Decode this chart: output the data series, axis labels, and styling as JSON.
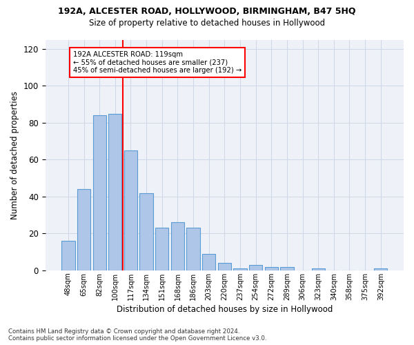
{
  "title1": "192A, ALCESTER ROAD, HOLLYWOOD, BIRMINGHAM, B47 5HQ",
  "title2": "Size of property relative to detached houses in Hollywood",
  "xlabel": "Distribution of detached houses by size in Hollywood",
  "ylabel": "Number of detached properties",
  "footnote": "Contains HM Land Registry data © Crown copyright and database right 2024.\nContains public sector information licensed under the Open Government Licence v3.0.",
  "bar_labels": [
    "48sqm",
    "65sqm",
    "82sqm",
    "100sqm",
    "117sqm",
    "134sqm",
    "151sqm",
    "168sqm",
    "186sqm",
    "203sqm",
    "220sqm",
    "237sqm",
    "254sqm",
    "272sqm",
    "289sqm",
    "306sqm",
    "323sqm",
    "340sqm",
    "358sqm",
    "375sqm",
    "392sqm"
  ],
  "bar_values": [
    16,
    44,
    84,
    85,
    65,
    42,
    23,
    26,
    23,
    9,
    4,
    1,
    3,
    2,
    2,
    0,
    1,
    0,
    0,
    0,
    1
  ],
  "bar_color": "#aec6e8",
  "bar_edge_color": "#5b9bd5",
  "grid_color": "#d0d8e8",
  "background_color": "#eef2f8",
  "annotation_text": "192A ALCESTER ROAD: 119sqm\n← 55% of detached houses are smaller (237)\n45% of semi-detached houses are larger (192) →",
  "annotation_box_color": "white",
  "annotation_box_edge_color": "red",
  "vline_x_index": 3,
  "vline_color": "red",
  "ylim": [
    0,
    125
  ],
  "yticks": [
    0,
    20,
    40,
    60,
    80,
    100,
    120
  ]
}
